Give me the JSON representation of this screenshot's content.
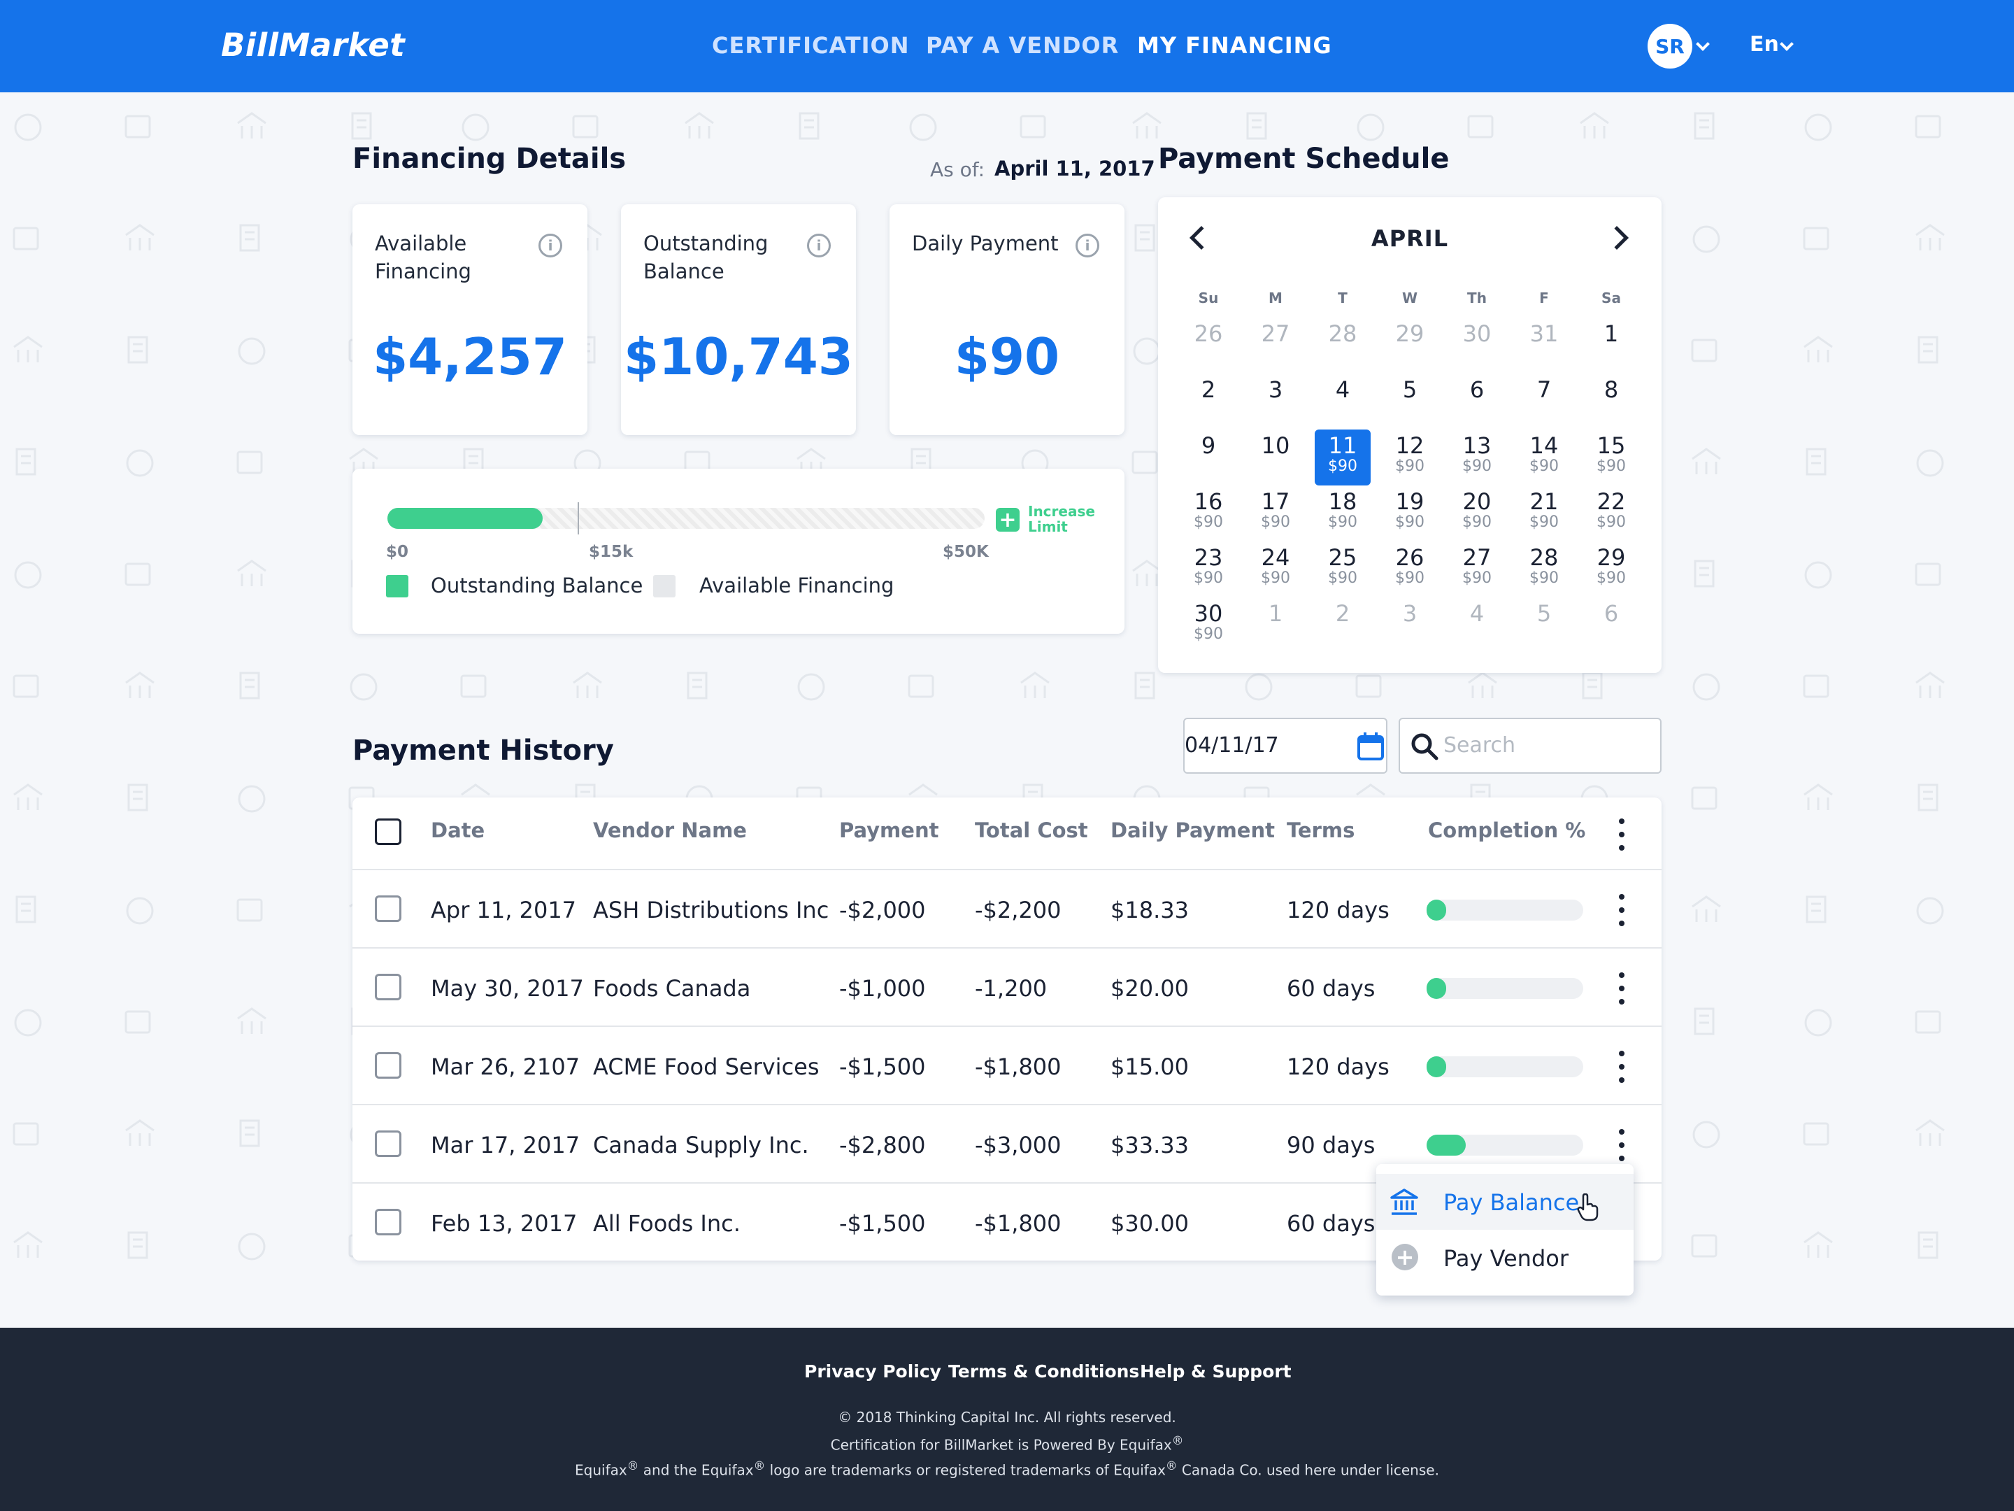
{
  "header": {
    "logo": "BillMarket",
    "nav": [
      {
        "label": "CERTIFICATION",
        "active": false
      },
      {
        "label": "PAY A VENDOR",
        "active": false
      },
      {
        "label": "MY FINANCING",
        "active": true
      }
    ],
    "avatar_initials": "SR",
    "language": "En",
    "colors": {
      "brand": "#1573ea",
      "accent_green": "#3ecf8e"
    }
  },
  "financing_details": {
    "title": "Financing Details",
    "as_of_label": "As of:",
    "as_of_date": "April 11, 2017",
    "cards": [
      {
        "label": "Available Financing",
        "value": "$4,257",
        "icon": "info-icon"
      },
      {
        "label": "Outstanding Balance",
        "value": "$10,743",
        "icon": "info-icon"
      },
      {
        "label": "Daily Payment",
        "value": "$90",
        "icon": "info-icon"
      }
    ],
    "limit_bar": {
      "fill_fraction": 0.26,
      "marker_label": "$15k",
      "ticks": [
        "$0",
        "$15k",
        "$50K"
      ],
      "increase_label": "Increase Limit",
      "legend": [
        {
          "label": "Outstanding Balance",
          "color": "#3ecf8e"
        },
        {
          "label": "Available Financing",
          "color": "#e6e8eb"
        }
      ]
    }
  },
  "payment_schedule": {
    "title": "Payment Schedule",
    "month": "APRIL",
    "weekdays": [
      "Su",
      "M",
      "T",
      "W",
      "Th",
      "F",
      "Sa"
    ],
    "selected_day": "11",
    "weeks": [
      [
        {
          "d": "26",
          "dim": true
        },
        {
          "d": "27",
          "dim": true
        },
        {
          "d": "28",
          "dim": true
        },
        {
          "d": "29",
          "dim": true
        },
        {
          "d": "30",
          "dim": true
        },
        {
          "d": "31",
          "dim": true
        },
        {
          "d": "1"
        }
      ],
      [
        {
          "d": "2"
        },
        {
          "d": "3"
        },
        {
          "d": "4"
        },
        {
          "d": "5"
        },
        {
          "d": "6"
        },
        {
          "d": "7"
        },
        {
          "d": "8"
        }
      ],
      [
        {
          "d": "9"
        },
        {
          "d": "10"
        },
        {
          "d": "11",
          "amt": "$90",
          "sel": true
        },
        {
          "d": "12",
          "amt": "$90"
        },
        {
          "d": "13",
          "amt": "$90"
        },
        {
          "d": "14",
          "amt": "$90"
        },
        {
          "d": "15",
          "amt": "$90"
        }
      ],
      [
        {
          "d": "16",
          "amt": "$90"
        },
        {
          "d": "17",
          "amt": "$90"
        },
        {
          "d": "18",
          "amt": "$90"
        },
        {
          "d": "19",
          "amt": "$90"
        },
        {
          "d": "20",
          "amt": "$90"
        },
        {
          "d": "21",
          "amt": "$90"
        },
        {
          "d": "22",
          "amt": "$90"
        }
      ],
      [
        {
          "d": "23",
          "amt": "$90"
        },
        {
          "d": "24",
          "amt": "$90"
        },
        {
          "d": "25",
          "amt": "$90"
        },
        {
          "d": "26",
          "amt": "$90"
        },
        {
          "d": "27",
          "amt": "$90"
        },
        {
          "d": "28",
          "amt": "$90"
        },
        {
          "d": "29",
          "amt": "$90"
        }
      ],
      [
        {
          "d": "30",
          "amt": "$90"
        },
        {
          "d": "1",
          "dim": true
        },
        {
          "d": "2",
          "dim": true
        },
        {
          "d": "3",
          "dim": true
        },
        {
          "d": "4",
          "dim": true
        },
        {
          "d": "5",
          "dim": true
        },
        {
          "d": "6",
          "dim": true
        }
      ]
    ]
  },
  "payment_history": {
    "title": "Payment History",
    "date_filter": "04/11/17",
    "search_placeholder": "Search",
    "columns": [
      "Date",
      "Vendor Name",
      "Payment",
      "Total Cost",
      "Daily Payment",
      "Terms",
      "Completion %"
    ],
    "rows": [
      {
        "date": "Apr 11, 2017",
        "vendor": "ASH Distributions Inc",
        "payment": "-$2,000",
        "total": "-$2,200",
        "daily": "$18.33",
        "terms": "120 days",
        "completion": 0.05
      },
      {
        "date": "May 30, 2017",
        "vendor": "Foods Canada",
        "payment": "-$1,000",
        "total": "-1,200",
        "daily": "$20.00",
        "terms": "60 days",
        "completion": 0.05
      },
      {
        "date": "Mar 26, 2107",
        "vendor": "ACME Food Services",
        "payment": "-$1,500",
        "total": "-$1,800",
        "daily": "$15.00",
        "terms": "120 days",
        "completion": 0.05
      },
      {
        "date": "Mar 17, 2017",
        "vendor": "Canada Supply Inc.",
        "payment": "-$2,800",
        "total": "-$3,000",
        "daily": "$33.33",
        "terms": "90 days",
        "completion": 0.25
      },
      {
        "date": "Feb 13, 2017",
        "vendor": "All Foods Inc.",
        "payment": "-$1,500",
        "total": "-$1,800",
        "daily": "$30.00",
        "terms": "60 days",
        "completion": 0.05
      }
    ],
    "row_menu": [
      {
        "label": "Pay Balance",
        "icon": "bank-icon",
        "highlighted": true
      },
      {
        "label": "Pay Vendor",
        "icon": "plus-circle-icon",
        "highlighted": false
      }
    ]
  },
  "footer": {
    "links": [
      "Privacy Policy",
      "Terms & Conditions",
      "Help & Support"
    ],
    "copyright": "© 2018 Thinking Capital Inc. All rights reserved.",
    "cert_text": "Certification for BillMarket is Powered By Equifax",
    "trademark_parts": [
      "Equifax",
      " and the Equifax",
      " logo are trademarks or registered trademarks of Equifax",
      " Canada Co. used here under license."
    ],
    "registered_mark": "®"
  }
}
